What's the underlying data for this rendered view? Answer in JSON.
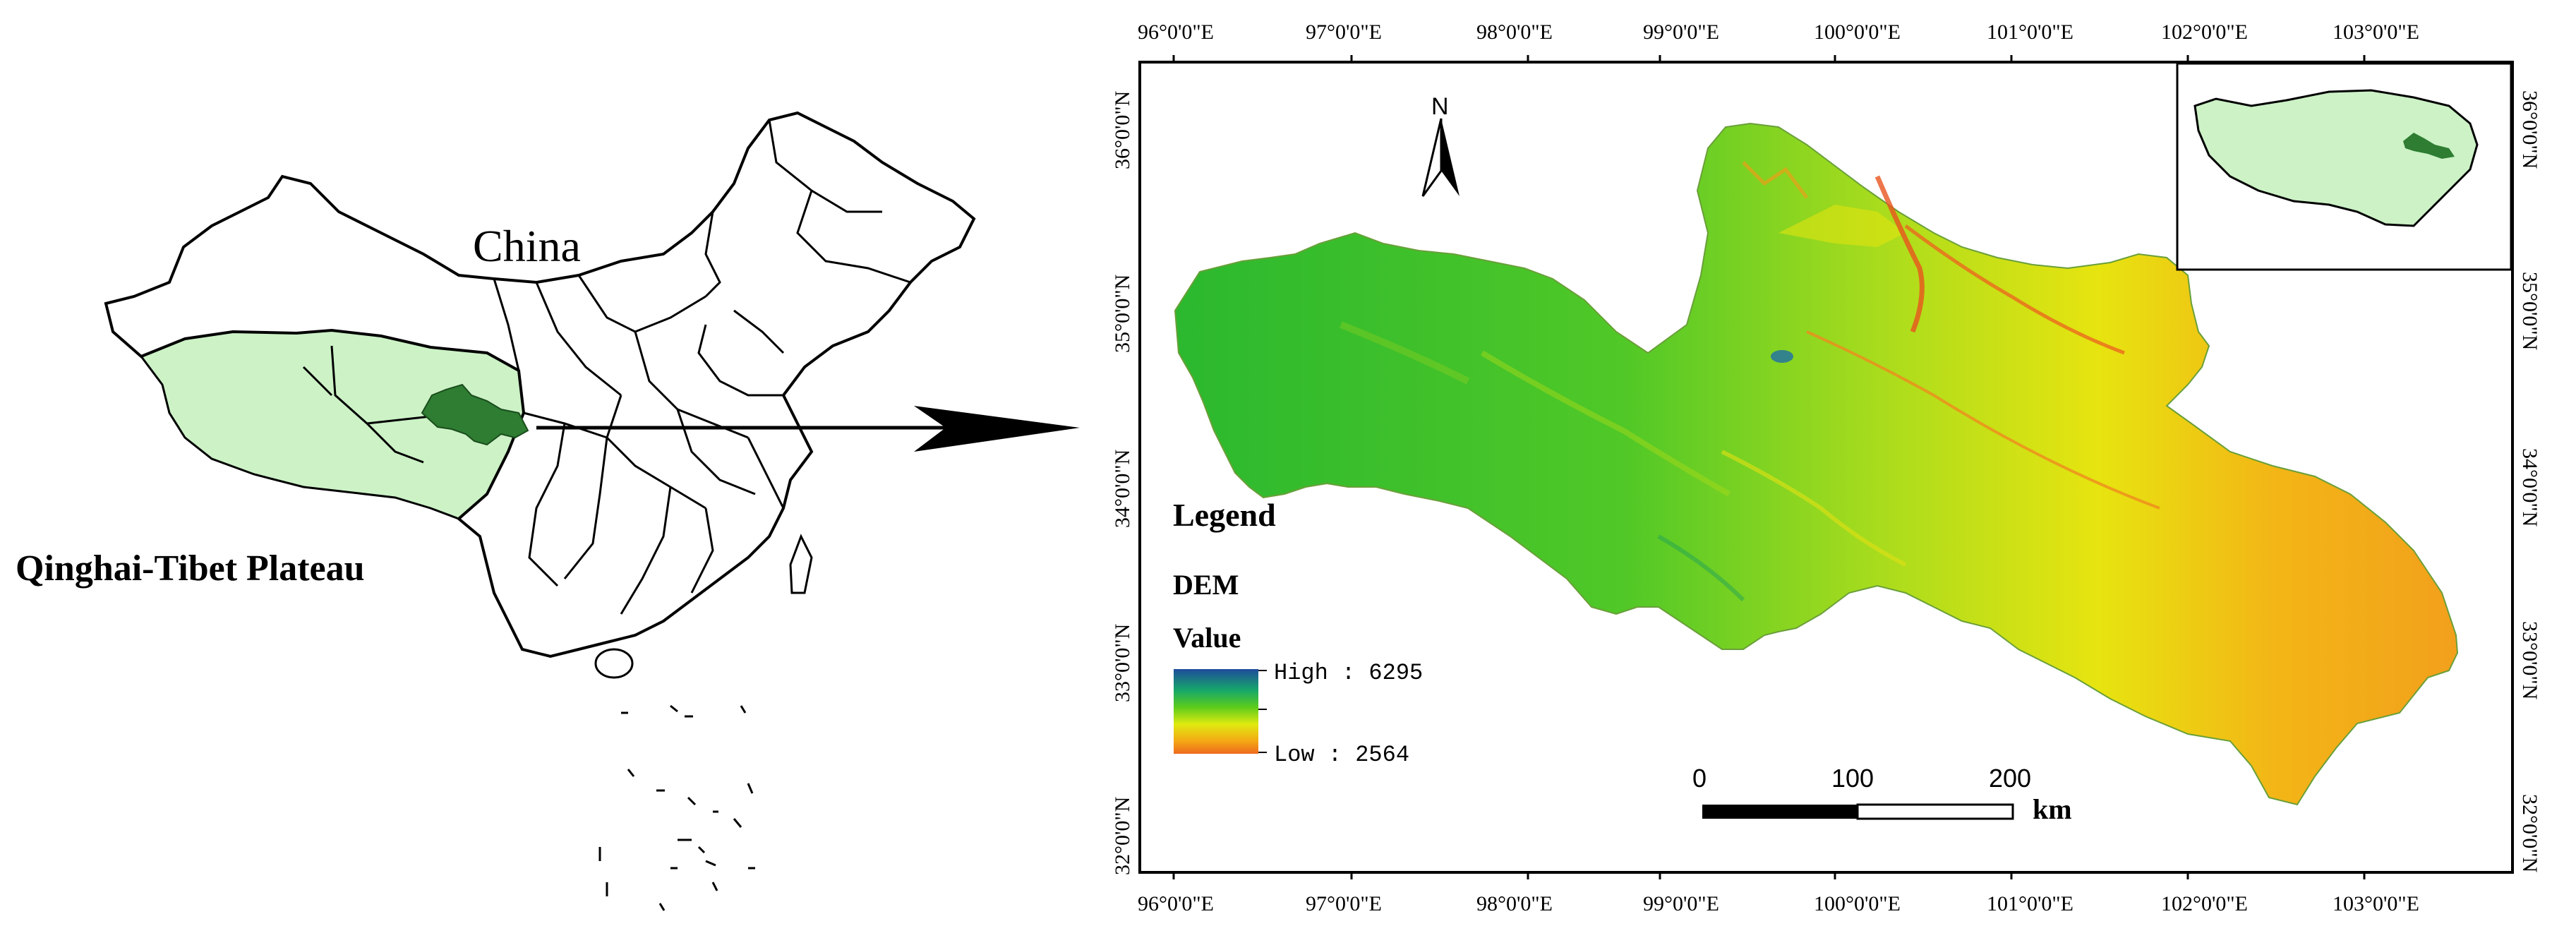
{
  "china_map": {
    "country_label": "China",
    "region_label": "Qinghai-Tibet Plateau",
    "colors": {
      "plateau": "#ccf2c6",
      "study_area": "#2e7d32",
      "outline": "#000000"
    }
  },
  "main_map": {
    "top_ticks": [
      "96°0'0\"E",
      "97°0'0\"E",
      "98°0'0\"E",
      "99°0'0\"E",
      "100°0'0\"E",
      "101°0'0\"E",
      "102°0'0\"E",
      "103°0'0\"E"
    ],
    "bottom_ticks": [
      "96°0'0\"E",
      "97°0'0\"E",
      "98°0'0\"E",
      "99°0'0\"E",
      "100°0'0\"E",
      "101°0'0\"E",
      "102°0'0\"E",
      "103°0'0\"E"
    ],
    "left_ticks": [
      "36°0'0\"N",
      "35°0'0\"N",
      "34°0'0\"N",
      "33°0'0\"N",
      "32°0'0\"N"
    ],
    "right_ticks": [
      "36°0'0\"N",
      "35°0'0\"N",
      "34°0'0\"N",
      "33°0'0\"N",
      "32°0'0\"N"
    ],
    "north_label": "N",
    "legend": {
      "title": "Legend",
      "layer": "DEM",
      "field": "Value",
      "high_label": "High : 6295",
      "low_label": "Low : 2564",
      "gradient_colors": [
        "#1e4c9c",
        "#16a86a",
        "#5ccc1c",
        "#dfea10",
        "#f4a814",
        "#ee6a1e"
      ]
    },
    "scale_bar": {
      "labels": [
        "0",
        "100",
        "200"
      ],
      "unit": "km"
    }
  }
}
